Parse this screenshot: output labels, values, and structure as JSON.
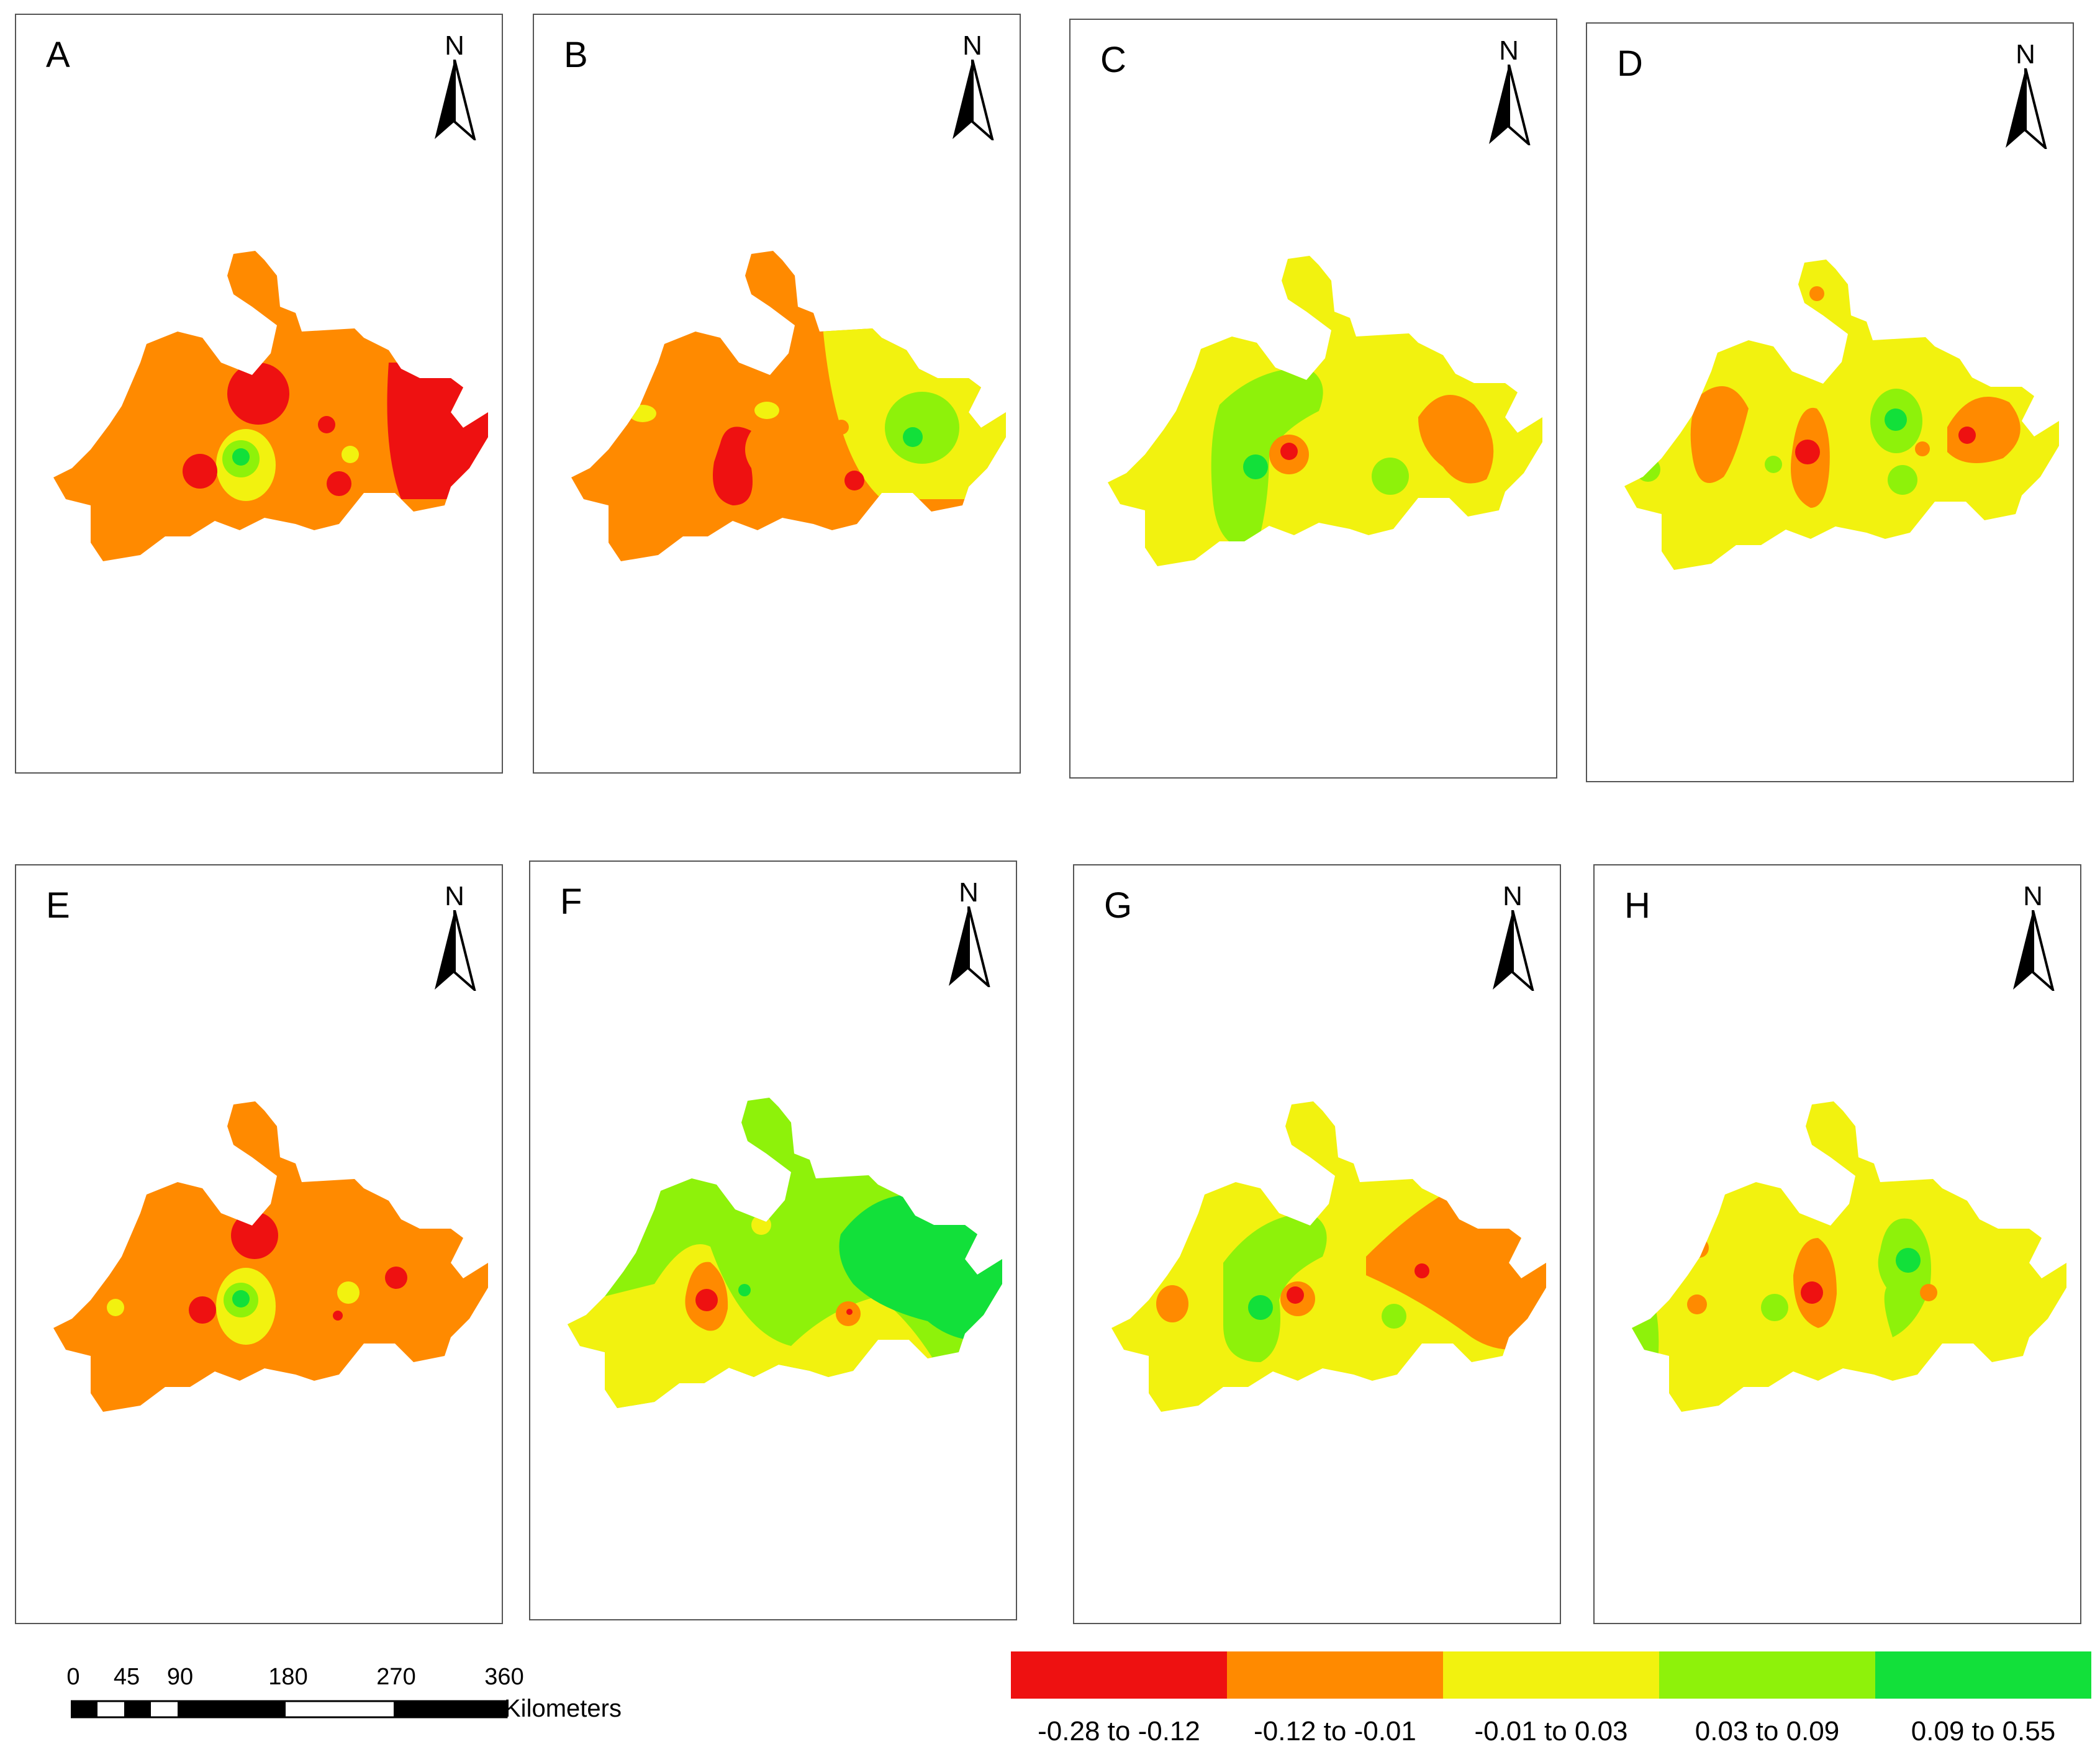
{
  "panels": [
    {
      "label": "A",
      "north": "N"
    },
    {
      "label": "B",
      "north": "N"
    },
    {
      "label": "C",
      "north": "N"
    },
    {
      "label": "D",
      "north": "N"
    },
    {
      "label": "E",
      "north": "N"
    },
    {
      "label": "F",
      "north": "N"
    },
    {
      "label": "G",
      "north": "N"
    },
    {
      "label": "H",
      "north": "N"
    }
  ],
  "scale_bar": {
    "ticks": [
      "0",
      "45",
      "90",
      "180",
      "270",
      "360"
    ],
    "unit": "Kilometers"
  },
  "legend": {
    "classes": [
      {
        "label": "-0.28 to -0.12",
        "color": "#ee1111"
      },
      {
        "label": "-0.12 to -0.01",
        "color": "#ff8a00"
      },
      {
        "label": "-0.01 to 0.03",
        "color": "#f2f20f"
      },
      {
        "label": "0.03 to 0.09",
        "color": "#8ef20a"
      },
      {
        "label": "0.09 to 0.55",
        "color": "#12e03a"
      }
    ]
  }
}
